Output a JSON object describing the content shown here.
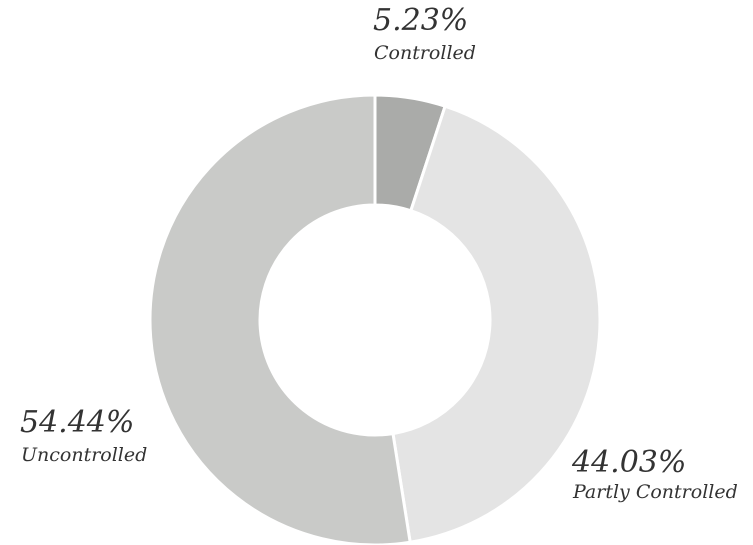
{
  "chart_data": {
    "type": "donut",
    "categories": [
      "Controlled",
      "Partly Controlled",
      "Uncontrolled"
    ],
    "values": [
      5.23,
      44.03,
      54.44
    ],
    "value_labels": [
      "5.23%",
      "44.03%",
      "54.44%"
    ],
    "colors": [
      "#aaaba9",
      "#e4e4e4",
      "#c9cac8"
    ]
  }
}
